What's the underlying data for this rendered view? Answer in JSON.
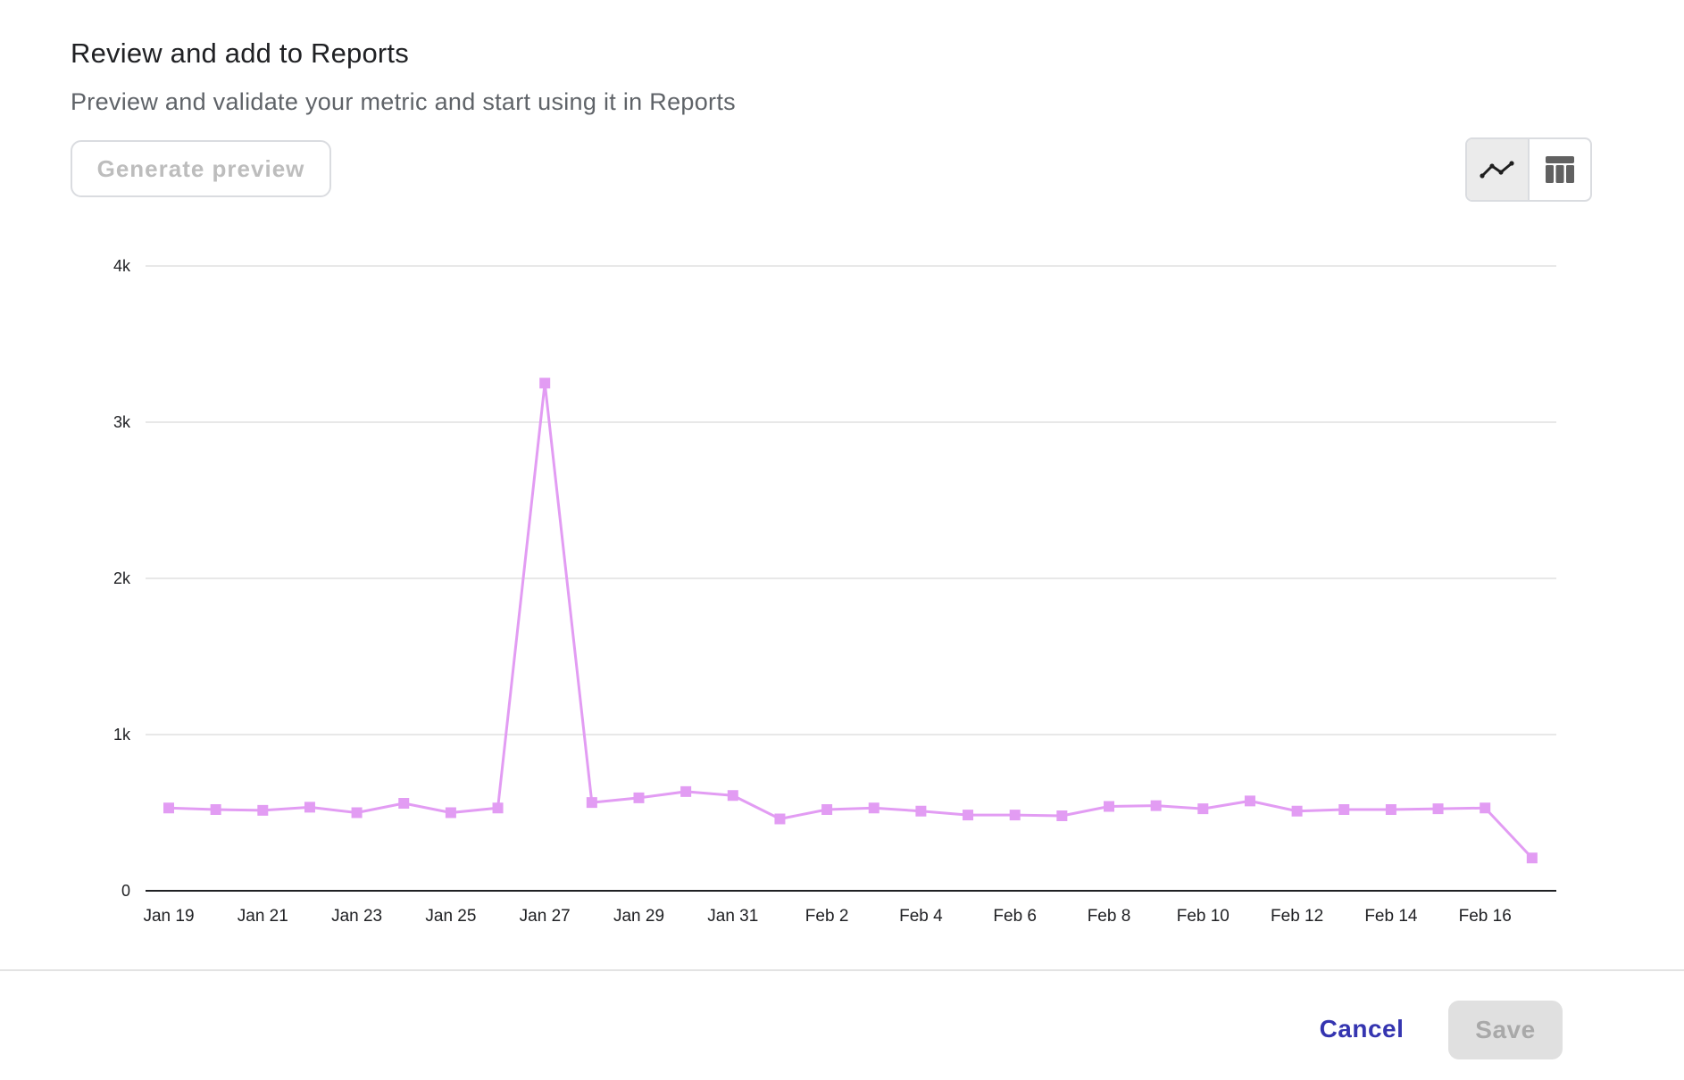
{
  "dialog": {
    "title": "Review and add to Reports",
    "subtitle": "Preview and validate your metric and start using it in Reports"
  },
  "toolbar": {
    "generate_preview_label": "Generate preview",
    "view_toggle": {
      "options": [
        {
          "icon": "line-chart-icon",
          "active": true
        },
        {
          "icon": "table-icon",
          "active": false
        }
      ]
    }
  },
  "footer": {
    "cancel_label": "Cancel",
    "save_label": "Save"
  },
  "colors": {
    "series": "#e29cf3",
    "accent": "#3535b0",
    "grid": "#e0e0e0",
    "axis": "#202124"
  },
  "chart_data": {
    "type": "line",
    "title": "",
    "xlabel": "",
    "ylabel": "",
    "ylim": [
      0,
      4000
    ],
    "yticks": [
      {
        "value": 0,
        "label": "0"
      },
      {
        "value": 1000,
        "label": "1k"
      },
      {
        "value": 2000,
        "label": "2k"
      },
      {
        "value": 3000,
        "label": "3k"
      },
      {
        "value": 4000,
        "label": "4k"
      }
    ],
    "xticks": [
      "Jan 19",
      "Jan 21",
      "Jan 23",
      "Jan 25",
      "Jan 27",
      "Jan 29",
      "Jan 31",
      "Feb 2",
      "Feb 4",
      "Feb 6",
      "Feb 8",
      "Feb 10",
      "Feb 12",
      "Feb 14",
      "Feb 16"
    ],
    "grid": true,
    "marker": "square",
    "x": [
      "Jan 19",
      "Jan 20",
      "Jan 21",
      "Jan 22",
      "Jan 23",
      "Jan 24",
      "Jan 25",
      "Jan 26",
      "Jan 27",
      "Jan 28",
      "Jan 29",
      "Jan 30",
      "Jan 31",
      "Feb 1",
      "Feb 2",
      "Feb 3",
      "Feb 4",
      "Feb 5",
      "Feb 6",
      "Feb 7",
      "Feb 8",
      "Feb 9",
      "Feb 10",
      "Feb 11",
      "Feb 12",
      "Feb 13",
      "Feb 14",
      "Feb 15",
      "Feb 16",
      "Feb 17"
    ],
    "series": [
      {
        "values": [
          530,
          520,
          515,
          535,
          500,
          560,
          500,
          530,
          3250,
          565,
          595,
          635,
          610,
          460,
          520,
          530,
          510,
          485,
          485,
          480,
          540,
          545,
          525,
          575,
          510,
          520,
          520,
          525,
          530,
          210
        ]
      }
    ]
  }
}
